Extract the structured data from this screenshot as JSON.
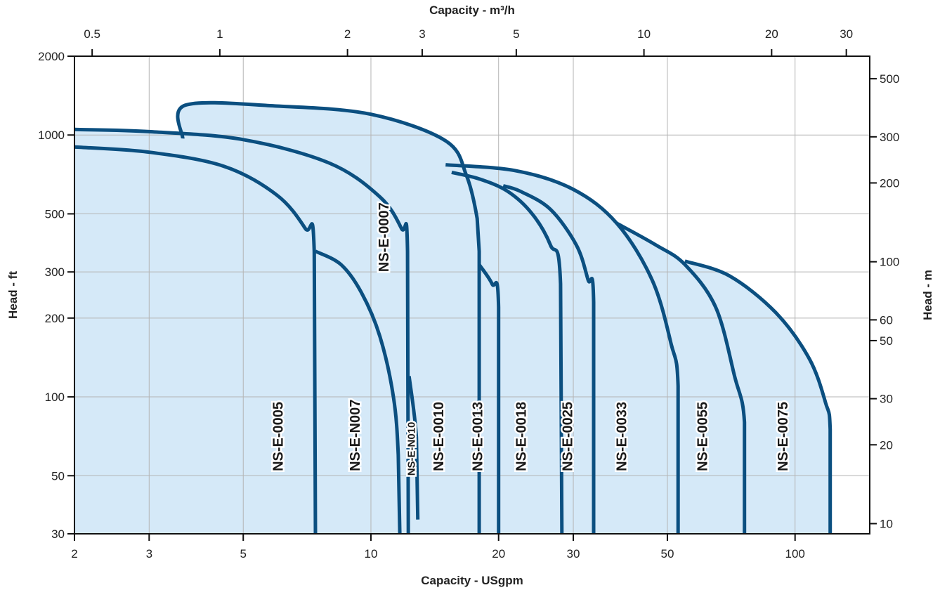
{
  "chart_data": {
    "type": "line",
    "title": "",
    "xlabel": "Capacity - USgpm",
    "x2label": "Capacity - m³/h",
    "ylabel": "Head - ft",
    "y2label": "Head - m",
    "x_scale": "log",
    "y_scale": "log",
    "xlim": [
      2,
      150
    ],
    "ylim": [
      30,
      2000
    ],
    "x_ticks": [
      2,
      3,
      5,
      10,
      20,
      30,
      50,
      100
    ],
    "x2_ticks": [
      0.5,
      1,
      2,
      3,
      5,
      10,
      20,
      30
    ],
    "y_ticks": [
      30,
      50,
      100,
      200,
      300,
      500,
      1000,
      2000
    ],
    "y2_ticks": [
      10,
      20,
      30,
      50,
      60,
      100,
      200,
      300,
      500
    ],
    "grid": true,
    "colors": {
      "curve": "#0b4f80",
      "fill": "#d5e9f8",
      "grid": "#b4b4b4",
      "axis": "#111111"
    },
    "series": [
      {
        "name": "NS-E-0005",
        "label_at": [
          6.2,
          52
        ],
        "points": [
          [
            2,
            900
          ],
          [
            3,
            860
          ],
          [
            4.5,
            760
          ],
          [
            6,
            590
          ],
          [
            7,
            440
          ],
          [
            7.35,
            360
          ],
          [
            7.4,
            30
          ]
        ]
      },
      {
        "name": "NS-E-N007",
        "label_at": [
          9.4,
          52
        ],
        "points": [
          [
            7.4,
            360
          ],
          [
            8.5,
            320
          ],
          [
            9.5,
            250
          ],
          [
            10.5,
            170
          ],
          [
            11.3,
            100
          ],
          [
            11.6,
            60
          ],
          [
            11.7,
            30
          ]
        ]
      },
      {
        "name": "NS-E-0007",
        "label_at": [
          11.0,
          300
        ],
        "points": [
          [
            2,
            1050
          ],
          [
            3,
            1030
          ],
          [
            5,
            960
          ],
          [
            8,
            780
          ],
          [
            10.5,
            580
          ],
          [
            11.8,
            440
          ],
          [
            12.2,
            360
          ],
          [
            12.25,
            30
          ]
        ]
      },
      {
        "name": "NS-E-N010",
        "label_at": [
          12.7,
          50
        ],
        "small": true,
        "points": [
          [
            12.3,
            120
          ],
          [
            12.8,
            70
          ],
          [
            12.9,
            34
          ]
        ]
      },
      {
        "name": "NS-E-0010",
        "label_at": [
          14.8,
          52
        ],
        "points": [
          [
            3.6,
            970
          ],
          [
            3.65,
            1300
          ],
          [
            6,
            1290
          ],
          [
            10,
            1200
          ],
          [
            15,
            950
          ],
          [
            16.8,
            700
          ],
          [
            17.8,
            480
          ],
          [
            18,
            360
          ],
          [
            18,
            30
          ]
        ]
      },
      {
        "name": "NS-E-0013",
        "label_at": [
          18.3,
          52
        ],
        "points": [
          [
            18,
            320
          ],
          [
            19.3,
            270
          ],
          [
            20,
            220
          ],
          [
            20,
            30
          ]
        ]
      },
      {
        "name": "NS-E-0018",
        "label_at": [
          23.2,
          52
        ],
        "points": [
          [
            15.5,
            720
          ],
          [
            18,
            680
          ],
          [
            21,
            610
          ],
          [
            24,
            500
          ],
          [
            26.5,
            380
          ],
          [
            28,
            270
          ],
          [
            28.2,
            30
          ]
        ]
      },
      {
        "name": "NS-E-0025",
        "label_at": [
          29.8,
          52
        ],
        "points": [
          [
            20.5,
            640
          ],
          [
            22.5,
            610
          ],
          [
            26.5,
            520
          ],
          [
            30.5,
            380
          ],
          [
            32.5,
            280
          ],
          [
            33.5,
            230
          ],
          [
            33.5,
            30
          ]
        ]
      },
      {
        "name": "NS-E-0033",
        "label_at": [
          40,
          52
        ],
        "points": [
          [
            15,
            770
          ],
          [
            22,
            730
          ],
          [
            30,
            620
          ],
          [
            38,
            460
          ],
          [
            46,
            280
          ],
          [
            51,
            160
          ],
          [
            53,
            110
          ],
          [
            53,
            30
          ]
        ]
      },
      {
        "name": "NS-E-0055",
        "label_at": [
          62,
          52
        ],
        "points": [
          [
            38,
            460
          ],
          [
            47,
            380
          ],
          [
            55,
            320
          ],
          [
            65,
            220
          ],
          [
            72,
            120
          ],
          [
            76,
            80
          ],
          [
            76,
            30
          ]
        ]
      },
      {
        "name": "NS-E-0075",
        "label_at": [
          96,
          52
        ],
        "points": [
          [
            55,
            330
          ],
          [
            70,
            290
          ],
          [
            90,
            210
          ],
          [
            108,
            140
          ],
          [
            118,
            95
          ],
          [
            121,
            75
          ],
          [
            121,
            30
          ]
        ]
      }
    ]
  }
}
